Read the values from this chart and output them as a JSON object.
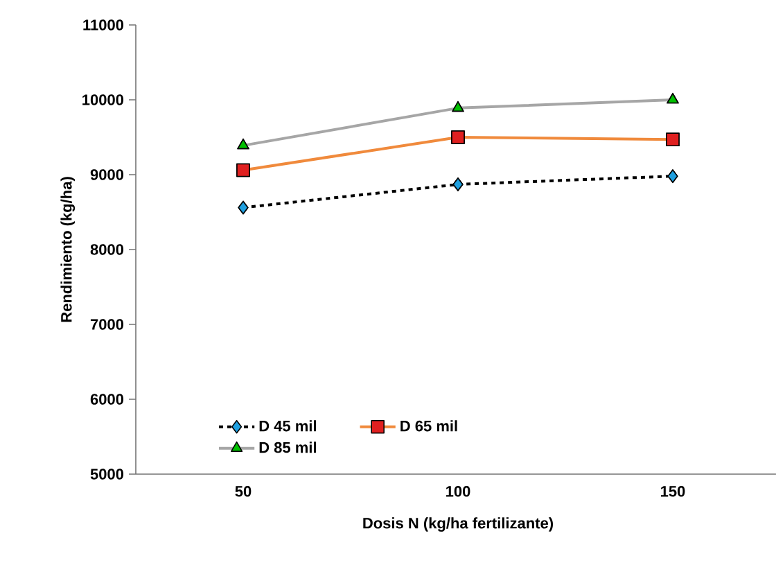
{
  "chart_data": {
    "type": "line",
    "xlabel": "Dosis N (kg/ha fertilizante)",
    "ylabel": "Rendimiento (kg/ha)",
    "categories": [
      "50",
      "100",
      "150"
    ],
    "ylim": [
      5000,
      11000
    ],
    "yticks": [
      5000,
      6000,
      7000,
      8000,
      9000,
      10000,
      11000
    ],
    "grid": false,
    "legend": "bottom left",
    "series": [
      {
        "name": "D 45 mil",
        "color": "#000000",
        "colors": [
          "#1fa0e0",
          "#1fa0e0",
          "#1fa0e0"
        ],
        "marker": "diamond",
        "line_style": "dashed",
        "values": [
          8560,
          8870,
          8980
        ]
      },
      {
        "name": "D 65 mil",
        "color": "#f08a3c",
        "colors": [
          "#e02020",
          "#e02020",
          "#e02020"
        ],
        "marker": "square",
        "line_style": "solid",
        "values": [
          9060,
          9500,
          9470
        ]
      },
      {
        "name": "D 85 mil",
        "color": "#a6a6a6",
        "colors": [
          "#00c000",
          "#00c000",
          "#00c000"
        ],
        "marker": "triangle",
        "line_style": "solid",
        "values": [
          9390,
          9890,
          10000
        ]
      }
    ]
  }
}
